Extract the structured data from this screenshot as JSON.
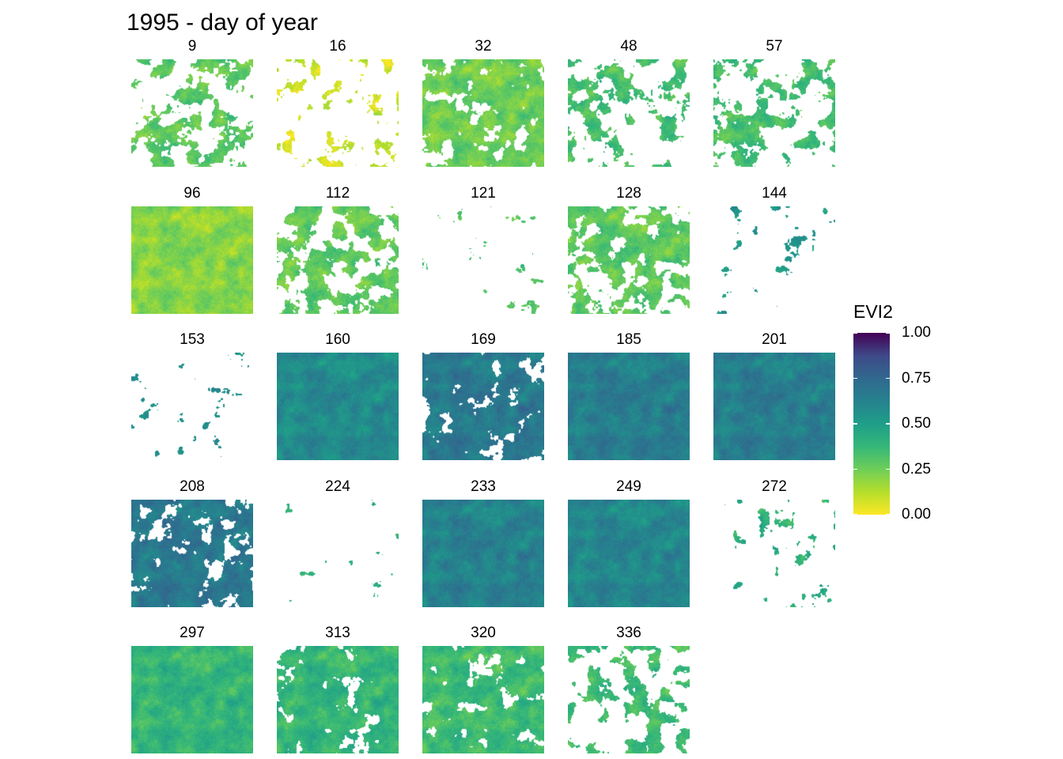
{
  "title": "1995 - day of year",
  "legend": {
    "title": "EVI2",
    "labels": [
      "1.00",
      "0.75",
      "0.50",
      "0.25",
      "0.00"
    ],
    "values": [
      1.0,
      0.75,
      0.5,
      0.25,
      0.0
    ],
    "colormap": [
      "#fde725",
      "#b5de2b",
      "#6ece58",
      "#35b779",
      "#1f9e89",
      "#26828e",
      "#31688e",
      "#3e4989",
      "#440154"
    ]
  },
  "chart_data": {
    "type": "heatmap",
    "title": "1995 - day of year",
    "colorbar": {
      "label": "EVI2",
      "range": [
        0,
        1
      ],
      "ticks": [
        0.0,
        0.25,
        0.5,
        0.75,
        1.0
      ]
    },
    "panels": [
      {
        "day": "9",
        "mean_evi2": 0.28,
        "coverage": 0.5
      },
      {
        "day": "16",
        "mean_evi2": 0.08,
        "coverage": 0.3
      },
      {
        "day": "32",
        "mean_evi2": 0.25,
        "coverage": 0.95
      },
      {
        "day": "48",
        "mean_evi2": 0.33,
        "coverage": 0.4
      },
      {
        "day": "57",
        "mean_evi2": 0.33,
        "coverage": 0.55
      },
      {
        "day": "96",
        "mean_evi2": 0.2,
        "coverage": 1.0
      },
      {
        "day": "112",
        "mean_evi2": 0.27,
        "coverage": 0.7
      },
      {
        "day": "121",
        "mean_evi2": 0.3,
        "coverage": 0.02
      },
      {
        "day": "128",
        "mean_evi2": 0.28,
        "coverage": 0.75
      },
      {
        "day": "144",
        "mean_evi2": 0.52,
        "coverage": 0.12
      },
      {
        "day": "153",
        "mean_evi2": 0.58,
        "coverage": 0.02
      },
      {
        "day": "160",
        "mean_evi2": 0.58,
        "coverage": 1.0
      },
      {
        "day": "169",
        "mean_evi2": 0.66,
        "coverage": 0.98
      },
      {
        "day": "185",
        "mean_evi2": 0.64,
        "coverage": 1.0
      },
      {
        "day": "201",
        "mean_evi2": 0.64,
        "coverage": 1.0
      },
      {
        "day": "208",
        "mean_evi2": 0.66,
        "coverage": 0.88
      },
      {
        "day": "224",
        "mean_evi2": 0.4,
        "coverage": 0.01
      },
      {
        "day": "233",
        "mean_evi2": 0.62,
        "coverage": 1.0
      },
      {
        "day": "249",
        "mean_evi2": 0.6,
        "coverage": 1.0
      },
      {
        "day": "272",
        "mean_evi2": 0.42,
        "coverage": 0.15
      },
      {
        "day": "297",
        "mean_evi2": 0.38,
        "coverage": 1.0
      },
      {
        "day": "313",
        "mean_evi2": 0.38,
        "coverage": 0.97
      },
      {
        "day": "320",
        "mean_evi2": 0.35,
        "coverage": 0.97
      },
      {
        "day": "336",
        "mean_evi2": 0.35,
        "coverage": 0.45
      }
    ]
  }
}
